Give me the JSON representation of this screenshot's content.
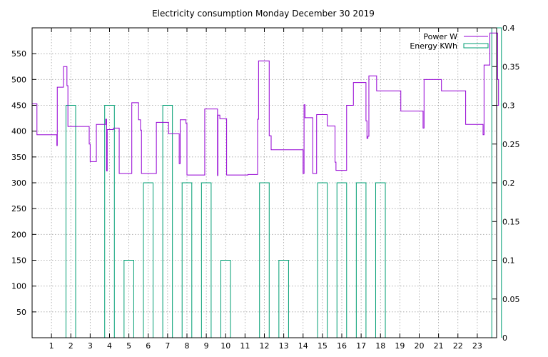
{
  "chart_data": {
    "type": "line",
    "title": "Electricity consumption Monday December 30 2019",
    "xlabel": "",
    "ylabel": "",
    "x_ticks": [
      1,
      2,
      3,
      4,
      5,
      6,
      7,
      8,
      9,
      10,
      11,
      12,
      13,
      14,
      15,
      16,
      17,
      18,
      19,
      20,
      21,
      22,
      23
    ],
    "xlim": [
      0,
      24
    ],
    "y_ticks": [
      50,
      100,
      150,
      200,
      250,
      300,
      350,
      400,
      450,
      500,
      550
    ],
    "ylim": [
      0,
      600
    ],
    "y2_ticks": [
      "0",
      "0.05",
      "0.1",
      "0.15",
      "0.2",
      "0.25",
      "0.3",
      "0.35",
      "0.4"
    ],
    "y2lim": [
      0,
      0.4
    ],
    "legend_position": "top-right",
    "grid": true,
    "series": [
      {
        "name": "Power W",
        "axis": "left",
        "style": "steps",
        "color": "#9400d3",
        "points": [
          [
            0.0,
            453
          ],
          [
            0.25,
            393
          ],
          [
            1.25,
            393
          ],
          [
            1.28,
            372
          ],
          [
            1.3,
            485
          ],
          [
            1.6,
            485
          ],
          [
            1.62,
            525
          ],
          [
            1.78,
            525
          ],
          [
            1.8,
            488
          ],
          [
            1.85,
            409
          ],
          [
            2.9,
            409
          ],
          [
            2.95,
            375
          ],
          [
            3.0,
            341
          ],
          [
            3.3,
            341
          ],
          [
            3.32,
            413
          ],
          [
            3.75,
            413
          ],
          [
            3.8,
            423
          ],
          [
            3.85,
            323
          ],
          [
            3.88,
            403
          ],
          [
            4.15,
            403
          ],
          [
            4.2,
            406
          ],
          [
            4.45,
            406
          ],
          [
            4.5,
            318
          ],
          [
            5.1,
            318
          ],
          [
            5.15,
            455
          ],
          [
            5.45,
            455
          ],
          [
            5.5,
            422
          ],
          [
            5.6,
            402
          ],
          [
            5.65,
            318
          ],
          [
            6.4,
            318
          ],
          [
            6.42,
            417
          ],
          [
            7.0,
            417
          ],
          [
            7.05,
            395
          ],
          [
            7.55,
            395
          ],
          [
            7.6,
            337
          ],
          [
            7.65,
            422
          ],
          [
            7.9,
            422
          ],
          [
            7.95,
            415
          ],
          [
            8.0,
            315
          ],
          [
            8.9,
            315
          ],
          [
            8.92,
            443
          ],
          [
            9.55,
            443
          ],
          [
            9.58,
            314
          ],
          [
            9.6,
            431
          ],
          [
            9.7,
            424
          ],
          [
            10.0,
            424
          ],
          [
            10.05,
            315
          ],
          [
            11.1,
            315
          ],
          [
            11.15,
            316
          ],
          [
            11.6,
            316
          ],
          [
            11.65,
            423
          ],
          [
            11.7,
            536
          ],
          [
            12.2,
            536
          ],
          [
            12.25,
            391
          ],
          [
            12.35,
            364
          ],
          [
            13.95,
            364
          ],
          [
            14.0,
            318
          ],
          [
            14.05,
            451
          ],
          [
            14.1,
            426
          ],
          [
            14.45,
            426
          ],
          [
            14.5,
            318
          ],
          [
            14.6,
            318
          ],
          [
            14.7,
            432
          ],
          [
            15.2,
            432
          ],
          [
            15.25,
            410
          ],
          [
            15.6,
            410
          ],
          [
            15.65,
            340
          ],
          [
            15.7,
            324
          ],
          [
            16.2,
            324
          ],
          [
            16.25,
            450
          ],
          [
            16.55,
            450
          ],
          [
            16.6,
            494
          ],
          [
            17.2,
            494
          ],
          [
            17.25,
            420
          ],
          [
            17.3,
            386
          ],
          [
            17.35,
            390
          ],
          [
            17.4,
            507
          ],
          [
            17.75,
            507
          ],
          [
            17.8,
            478
          ],
          [
            19.0,
            478
          ],
          [
            19.05,
            439
          ],
          [
            20.15,
            439
          ],
          [
            20.2,
            406
          ],
          [
            20.25,
            500
          ],
          [
            21.1,
            500
          ],
          [
            21.15,
            478
          ],
          [
            22.35,
            478
          ],
          [
            22.4,
            413
          ],
          [
            23.25,
            413
          ],
          [
            23.3,
            393
          ],
          [
            23.35,
            528
          ],
          [
            23.6,
            528
          ],
          [
            23.65,
            590
          ],
          [
            24.0,
            590
          ],
          [
            24.05,
            500
          ],
          [
            24.1,
            450
          ]
        ]
      },
      {
        "name": "Energy KWh",
        "axis": "right",
        "style": "histeps",
        "color": "#009e73",
        "hours": [
          0,
          1,
          2,
          3,
          4,
          5,
          6,
          7,
          8,
          9,
          10,
          11,
          12,
          13,
          14,
          15,
          16,
          17,
          18,
          19,
          20,
          21,
          22,
          23
        ],
        "values": [
          0,
          0.3,
          0,
          0.3,
          0.1,
          0.2,
          0.3,
          0.2,
          0.2,
          0.1,
          0,
          0.2,
          0.1,
          0,
          0.2,
          0.2,
          0.2,
          0.2,
          0,
          0,
          0,
          0,
          0,
          0.4
        ]
      }
    ]
  }
}
